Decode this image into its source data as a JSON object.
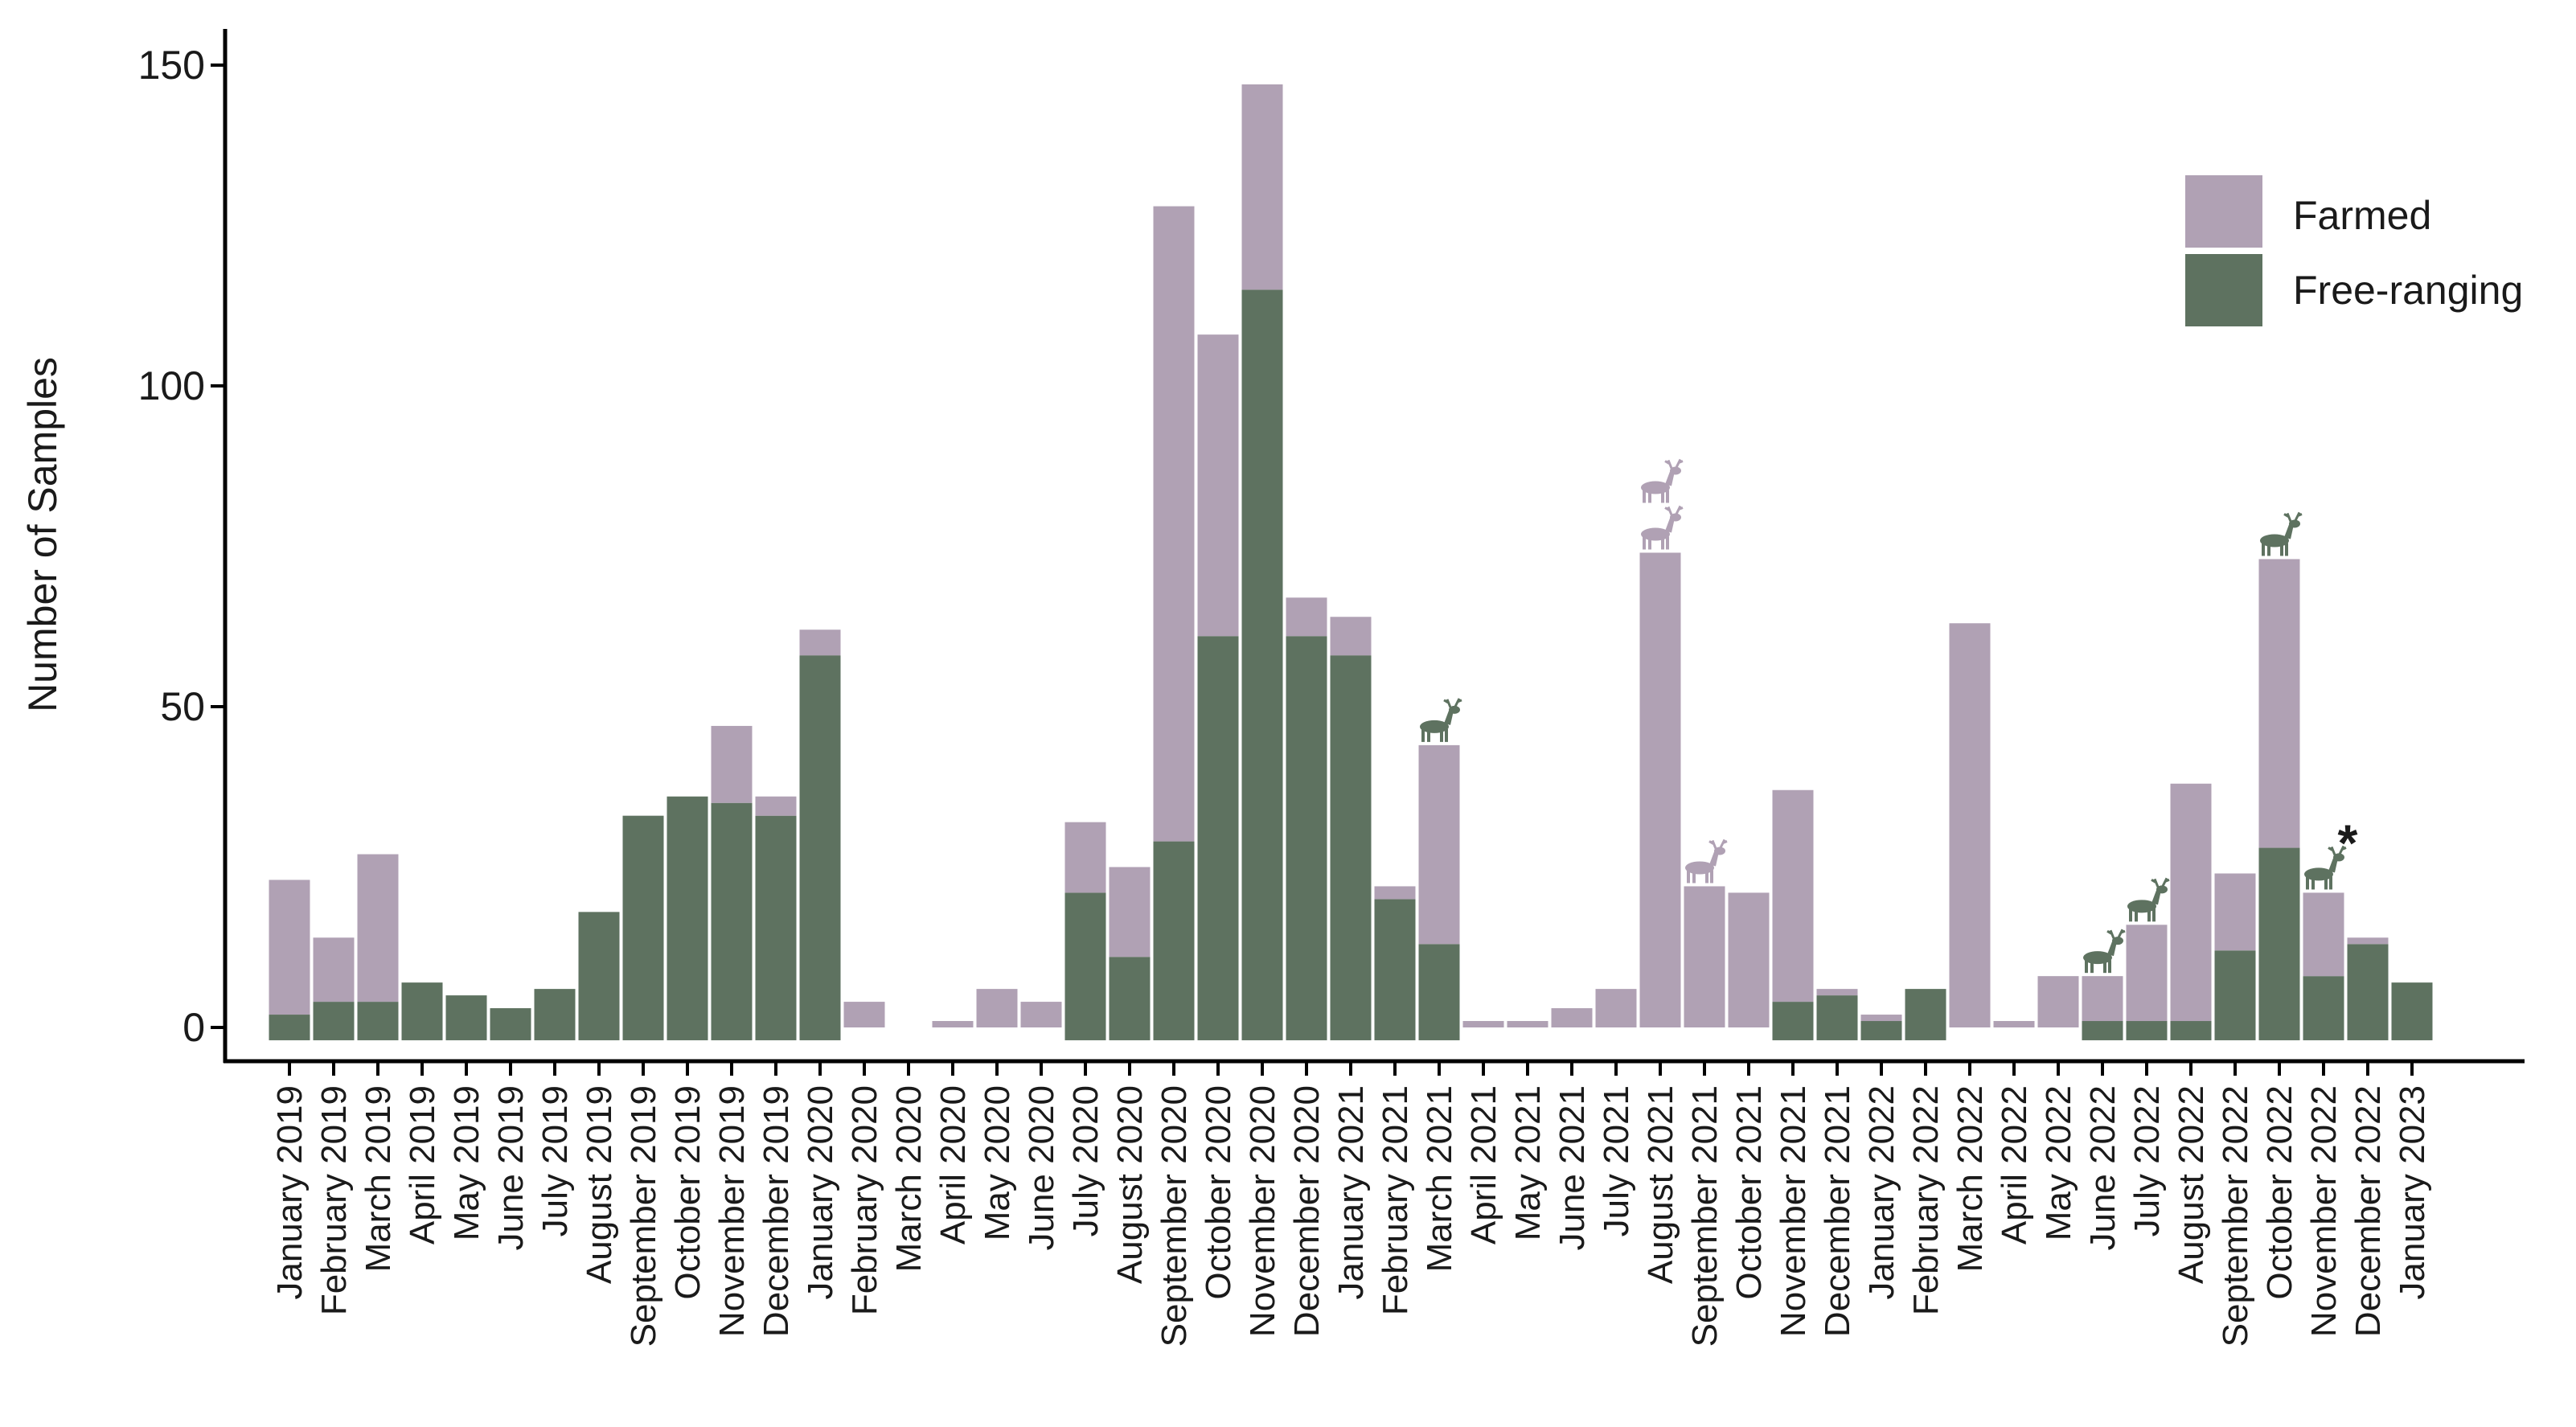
{
  "chart_data": {
    "type": "bar",
    "stacked": true,
    "title": "",
    "xlabel": "",
    "ylabel": "Number of Samples",
    "ylim": [
      -2,
      152
    ],
    "yticks": [
      0,
      50,
      100,
      150
    ],
    "legend_position": "top-right",
    "categories": [
      "January 2019",
      "February 2019",
      "March 2019",
      "April 2019",
      "May 2019",
      "June 2019",
      "July 2019",
      "August 2019",
      "September 2019",
      "October 2019",
      "November 2019",
      "December 2019",
      "January 2020",
      "February 2020",
      "March 2020",
      "April 2020",
      "May 2020",
      "June 2020",
      "July 2020",
      "August 2020",
      "September 2020",
      "October 2020",
      "November 2020",
      "December 2020",
      "January 2021",
      "February 2021",
      "March 2021",
      "April 2021",
      "May 2021",
      "June 2021",
      "July 2021",
      "August 2021",
      "September 2021",
      "October 2021",
      "November 2021",
      "December 2021",
      "January 2022",
      "February 2022",
      "March 2022",
      "April 2022",
      "May 2022",
      "June 2022",
      "July 2022",
      "August 2022",
      "September 2022",
      "October 2022",
      "November 2022",
      "December 2022",
      "January 2023"
    ],
    "series": [
      {
        "name": "Free-ranging",
        "color": "#5e7260",
        "values": [
          2,
          4,
          4,
          7,
          5,
          3,
          6,
          18,
          33,
          36,
          35,
          33,
          58,
          0,
          0,
          0,
          0,
          0,
          21,
          11,
          29,
          61,
          115,
          61,
          58,
          20,
          13,
          0,
          0,
          0,
          0,
          0,
          0,
          0,
          4,
          5,
          1,
          6,
          0,
          0,
          0,
          1,
          1,
          1,
          12,
          28,
          8,
          13,
          7
        ]
      },
      {
        "name": "Farmed",
        "color": "#b0a1b4",
        "values": [
          21,
          10,
          23,
          0,
          0,
          0,
          0,
          0,
          0,
          0,
          12,
          3,
          4,
          4,
          0,
          1,
          6,
          4,
          11,
          14,
          99,
          47,
          32,
          6,
          6,
          2,
          31,
          1,
          1,
          3,
          6,
          74,
          22,
          21,
          33,
          1,
          1,
          0,
          63,
          1,
          8,
          7,
          15,
          37,
          12,
          45,
          13,
          1,
          0
        ]
      }
    ],
    "annotations": [
      {
        "category": "March 2021",
        "icon": "deer-icon",
        "color": "#5e7260",
        "count": 1
      },
      {
        "category": "August 2021",
        "icon": "deer-icon",
        "color": "#b0a1b4",
        "count": 2
      },
      {
        "category": "September 2021",
        "icon": "deer-icon",
        "color": "#b0a1b4",
        "count": 1
      },
      {
        "category": "June 2022",
        "icon": "deer-icon",
        "color": "#5e7260",
        "count": 1
      },
      {
        "category": "July 2022",
        "icon": "deer-icon",
        "color": "#5e7260",
        "count": 1
      },
      {
        "category": "October 2022",
        "icon": "deer-icon",
        "color": "#5e7260",
        "count": 1
      },
      {
        "category": "November 2022",
        "icon": "deer-icon",
        "color": "#5e7260",
        "count": 1
      }
    ],
    "footnote_marker": {
      "category": "November 2022",
      "text": "*",
      "color": "#c8102e"
    }
  },
  "legend": {
    "farmed_label": "Farmed",
    "free_ranging_label": "Free-ranging"
  }
}
